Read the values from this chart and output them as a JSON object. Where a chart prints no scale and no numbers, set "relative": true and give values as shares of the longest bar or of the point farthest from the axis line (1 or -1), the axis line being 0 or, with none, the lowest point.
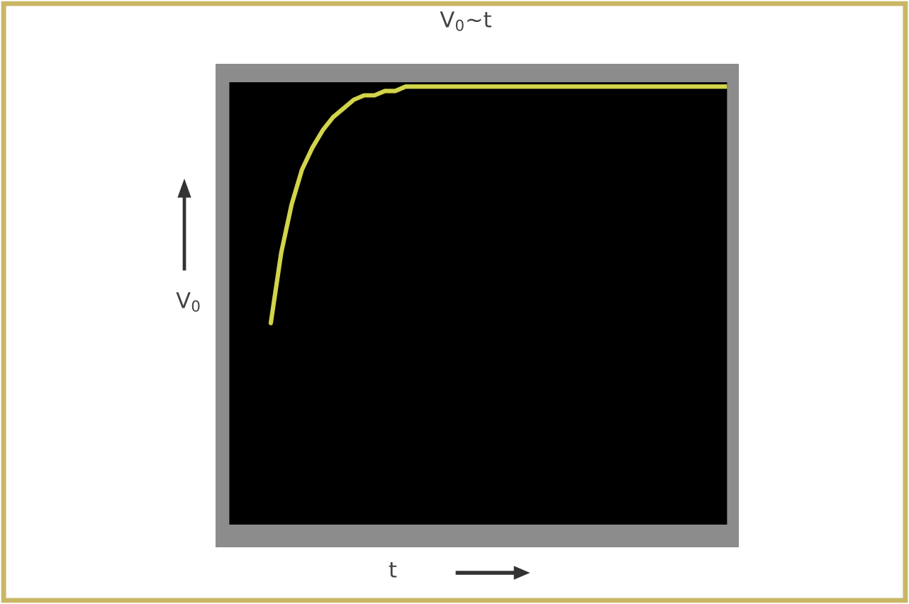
{
  "chart_data": {
    "type": "line",
    "title": "V$_{0}$~t",
    "xlabel": "t",
    "ylabel": "V$_{0}$",
    "relative": true,
    "line_style": "solid",
    "marker": "none",
    "categories": [
      null,
      null,
      null,
      null,
      null,
      null,
      null,
      null,
      null,
      null,
      null,
      null,
      null,
      null,
      null,
      null,
      null,
      null,
      null,
      null,
      null,
      null,
      null,
      null,
      null,
      null,
      null,
      null,
      null,
      null,
      null,
      null,
      null,
      null,
      null,
      null,
      null,
      null,
      null,
      null,
      null,
      null,
      null,
      null,
      null,
      null,
      null,
      null,
      null
    ],
    "series": [
      {
        "color": "#d2d44a",
        "values": [
          null,
          null,
          null,
          null,
          0.46,
          0.62,
          0.73,
          0.81,
          0.86,
          0.9,
          0.93,
          0.95,
          0.97,
          0.98,
          0.98,
          0.99,
          0.99,
          1.0,
          1.0,
          1.0,
          1.0,
          1.0,
          1.0,
          1.0,
          1.0,
          1.0,
          1.0,
          1.0,
          1.0,
          1.0,
          1.0,
          1.0,
          1.0,
          1.0,
          1.0,
          1.0,
          1.0,
          1.0,
          1.0,
          1.0,
          1.0,
          1.0,
          1.0,
          1.0,
          1.0,
          1.0,
          1.0,
          1.0,
          1.0
        ]
      }
    ]
  }
}
